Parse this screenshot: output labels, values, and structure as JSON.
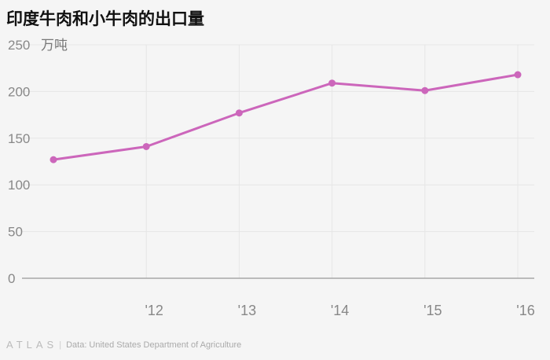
{
  "title": "印度牛肉和小牛肉的出口量",
  "unit_label": "万吨",
  "footer": {
    "logo": "ATLAS",
    "source": "Data: United States Department of Agriculture"
  },
  "colors": {
    "line": "#cc66bb",
    "grid": "#e6e6e6",
    "axis": "#999999",
    "tick": "#888888"
  },
  "chart_data": {
    "type": "line",
    "x": [
      2011,
      2012,
      2013,
      2014,
      2015,
      2016
    ],
    "x_tick_labels": [
      {
        "x": 2012,
        "label": "'12"
      },
      {
        "x": 2013,
        "label": "'13"
      },
      {
        "x": 2014,
        "label": "'14"
      },
      {
        "x": 2015,
        "label": "'15"
      },
      {
        "x": 2016,
        "label": "'16"
      }
    ],
    "series": [
      {
        "values": [
          127,
          141,
          177,
          209,
          201,
          218
        ]
      }
    ],
    "ylim": [
      0,
      250
    ],
    "y_ticks": [
      0,
      50,
      100,
      150,
      200,
      250
    ],
    "grid": true
  }
}
